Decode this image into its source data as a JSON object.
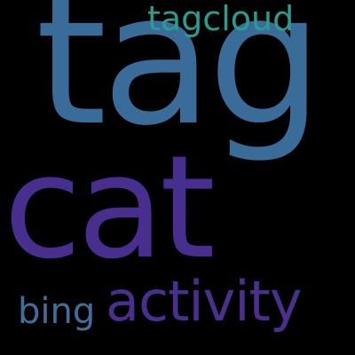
{
  "colors": {
    "background": "#000000",
    "tagcloud": "#2a9d8f",
    "tag": "#3a6c9a",
    "cat": "#482f8f",
    "bing": "#3f6f9a",
    "activity": "#4a2f8c"
  },
  "words": {
    "tagcloud": "tagcloud",
    "tag": "tag",
    "cat": "cat",
    "bing": "bing",
    "activity": "activity"
  }
}
